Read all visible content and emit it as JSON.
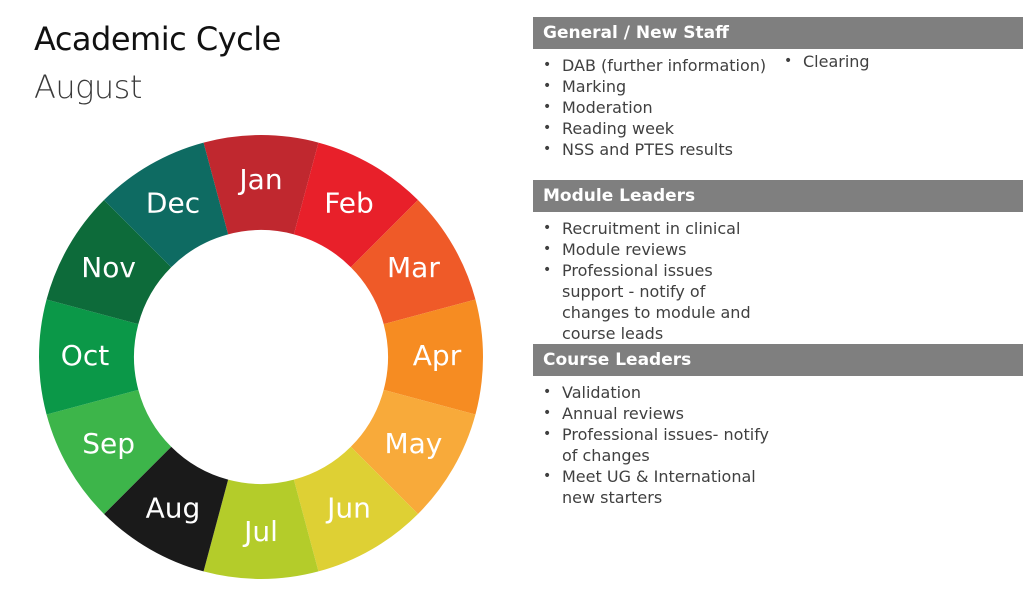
{
  "title": "Academic Cycle",
  "subtitle": "August",
  "wheel": {
    "months": [
      {
        "label": "Jan",
        "color": "#c0282f"
      },
      {
        "label": "Feb",
        "color": "#e8202a"
      },
      {
        "label": "Mar",
        "color": "#ef5a28"
      },
      {
        "label": "Apr",
        "color": "#f68c22"
      },
      {
        "label": "May",
        "color": "#f8aa3a"
      },
      {
        "label": "Jun",
        "color": "#ded034"
      },
      {
        "label": "Jul",
        "color": "#b4cc2a"
      },
      {
        "label": "Aug",
        "color": "#1a1a1a"
      },
      {
        "label": "Sep",
        "color": "#3db54a"
      },
      {
        "label": "Oct",
        "color": "#0b9848"
      },
      {
        "label": "Nov",
        "color": "#0d6b3a"
      },
      {
        "label": "Dec",
        "color": "#0e6b62"
      }
    ]
  },
  "sections": {
    "general": {
      "header": "General / New Staff",
      "items": [
        "DAB (further information)",
        "Marking",
        "Moderation",
        "Reading week",
        "NSS and PTES results"
      ],
      "items_col2": [
        "Clearing"
      ]
    },
    "module": {
      "header": "Module Leaders",
      "items": [
        "Recruitment in clinical",
        "Module reviews",
        "Professional issues support - notify of changes to module and course leads"
      ]
    },
    "course": {
      "header": "Course Leaders",
      "items": [
        "Validation",
        "Annual reviews",
        "Professional issues- notify of changes",
        "Meet UG & International new starters"
      ]
    }
  }
}
